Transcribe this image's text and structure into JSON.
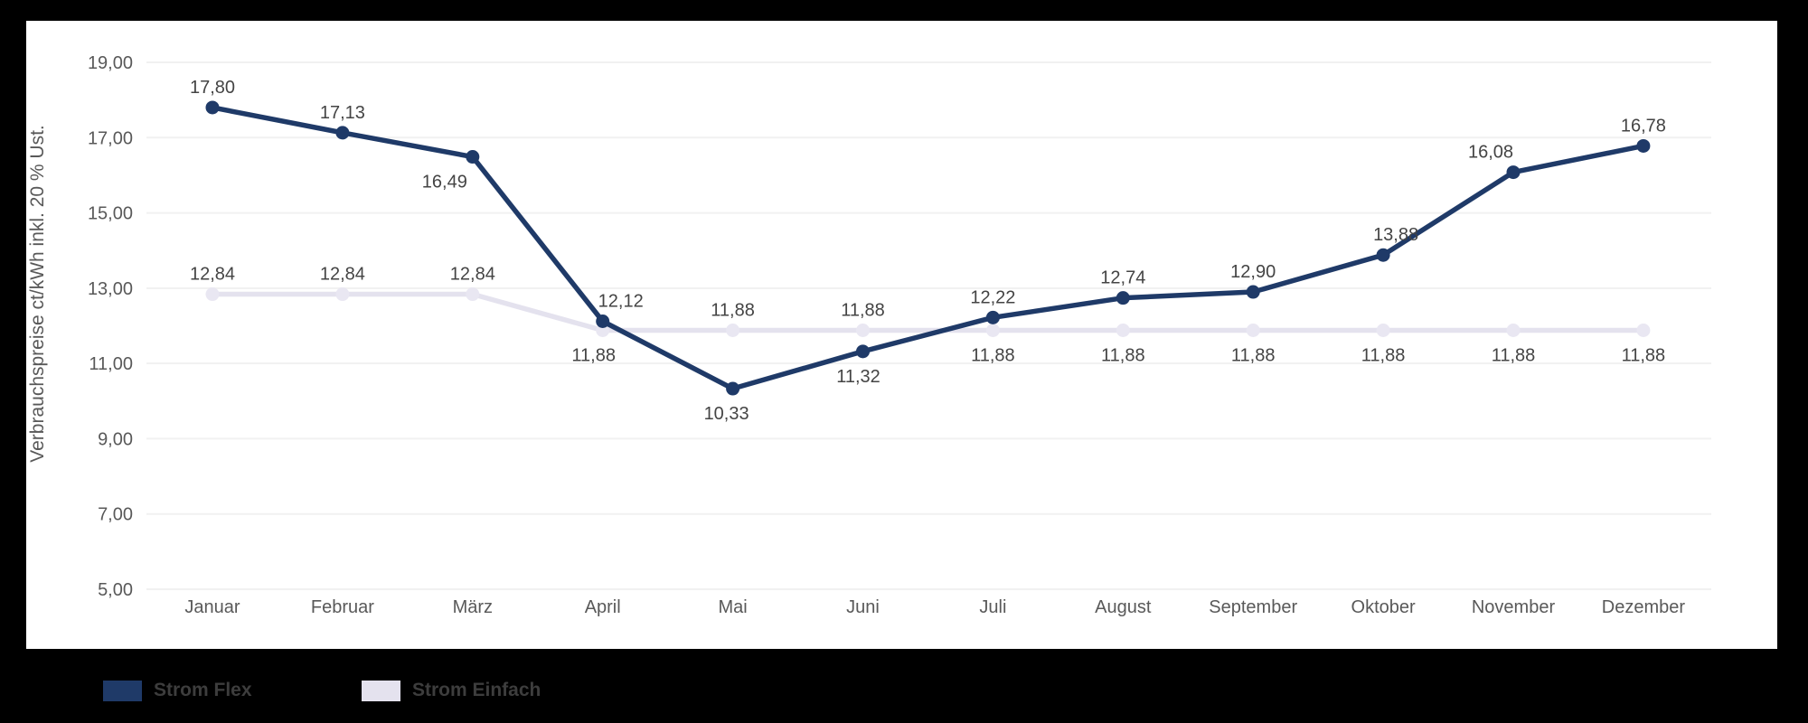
{
  "page": {
    "background_color": "#000000",
    "card_background": "#ffffff"
  },
  "chart_data": {
    "type": "line",
    "title": "",
    "xlabel": "",
    "ylabel": "Verbrauchspreise ct/kWh inkl. 20 % Ust.",
    "ylim": [
      5,
      19
    ],
    "grid": "horizontal",
    "legend_position": "bottom-left",
    "categories": [
      "Januar",
      "Februar",
      "März",
      "April",
      "Mai",
      "Juni",
      "Juli",
      "August",
      "September",
      "Oktober",
      "November",
      "Dezember"
    ],
    "y_ticks": [
      "19,00",
      "17,00",
      "15,00",
      "13,00",
      "11,00",
      "9,00",
      "7,00",
      "5,00"
    ],
    "series": [
      {
        "name": "Strom Einfach",
        "color": "#e4e2ee",
        "marker_color": "#e9e7f2",
        "values": [
          12.84,
          12.84,
          12.84,
          11.88,
          11.88,
          11.88,
          11.88,
          11.88,
          11.88,
          11.88,
          11.88,
          11.88
        ],
        "labels": [
          "12,84",
          "12,84",
          "12,84",
          "11,88",
          "11,88",
          "11,88",
          "11,88",
          "11,88",
          "11,88",
          "11,88",
          "11,88",
          "11,88"
        ],
        "label_side": [
          "above",
          "above",
          "above",
          "below",
          "above",
          "above",
          "below",
          "below",
          "below",
          "below",
          "below",
          "below"
        ],
        "label_dx": [
          0,
          0,
          0,
          -10,
          0,
          0,
          0,
          0,
          0,
          0,
          0,
          0
        ]
      },
      {
        "name": "Strom Flex",
        "color": "#1f3a68",
        "marker_color": "#1f3a68",
        "values": [
          17.8,
          17.13,
          16.49,
          12.12,
          10.33,
          11.32,
          12.22,
          12.74,
          12.9,
          13.88,
          16.08,
          16.78
        ],
        "labels": [
          "17,80",
          "17,13",
          "16,49",
          "12,12",
          "10,33",
          "11,32",
          "12,22",
          "12,74",
          "12,90",
          "13,88",
          "16,08",
          "16,78"
        ],
        "label_side": [
          "above",
          "above",
          "below",
          "above",
          "below",
          "below",
          "above",
          "above",
          "above",
          "above",
          "above",
          "above"
        ],
        "label_dx": [
          0,
          0,
          -31,
          20,
          -7,
          -5,
          0,
          0,
          0,
          14,
          -25,
          0
        ]
      }
    ],
    "axis_text_color": "#595959",
    "data_label_color": "#444444",
    "gridline_color": "#f1f1f1"
  },
  "legend": {
    "items": [
      {
        "label": "Strom Flex",
        "color": "#1f3a68"
      },
      {
        "label": "Strom Einfach",
        "color": "#e4e2ee"
      }
    ]
  }
}
